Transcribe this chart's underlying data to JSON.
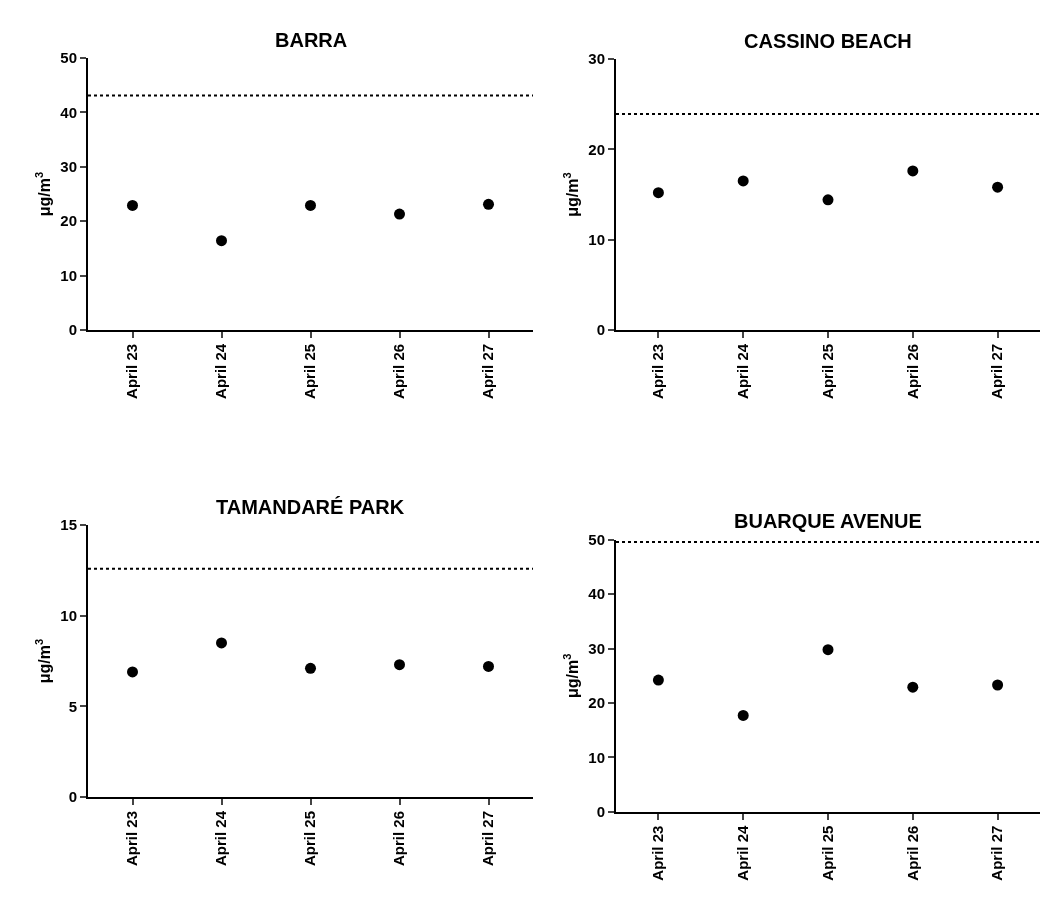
{
  "chart_data": [
    {
      "type": "scatter",
      "title": "BARRA",
      "ylabel": "μg/m$^{3}$",
      "categories": [
        "April 23",
        "April 24",
        "April 25",
        "April 26",
        "April 27"
      ],
      "series": [
        {
          "color": "#000000",
          "values": [
            22.9,
            16.4,
            22.9,
            21.3,
            23.1
          ]
        }
      ],
      "ylim": [
        0,
        50
      ],
      "yticks": [
        0,
        10,
        20,
        30,
        40,
        50
      ],
      "ref_lines": [
        {
          "axis": "y",
          "value": 43.1,
          "color": "#000000",
          "line_style": "dotted"
        }
      ],
      "marker": "circle",
      "grid": false
    },
    {
      "type": "scatter",
      "title": "CASSINO BEACH",
      "ylabel": "μg/m$^{3}$",
      "categories": [
        "April 23",
        "April 24",
        "April 25",
        "April 26",
        "April 27"
      ],
      "series": [
        {
          "color": "#000000",
          "values": [
            15.2,
            16.5,
            14.4,
            17.6,
            15.8
          ]
        }
      ],
      "ylim": [
        0,
        30
      ],
      "yticks": [
        0,
        10,
        20,
        30
      ],
      "ref_lines": [
        {
          "axis": "y",
          "value": 23.9,
          "color": "#000000",
          "line_style": "dotted"
        }
      ],
      "marker": "circle",
      "grid": false
    },
    {
      "type": "scatter",
      "title": "TAMANDARÉ PARK",
      "ylabel": "μg/m$^{3}$",
      "categories": [
        "April 23",
        "April 24",
        "April 25",
        "April 26",
        "April 27"
      ],
      "series": [
        {
          "color": "#000000",
          "values": [
            6.9,
            8.5,
            7.1,
            7.3,
            7.2
          ]
        }
      ],
      "ylim": [
        0,
        15
      ],
      "yticks": [
        0,
        5,
        10,
        15
      ],
      "ref_lines": [
        {
          "axis": "y",
          "value": 12.6,
          "color": "#000000",
          "line_style": "dotted"
        }
      ],
      "marker": "circle",
      "grid": false
    },
    {
      "type": "scatter",
      "title": "BUARQUE AVENUE",
      "ylabel": "μg/m$^{3}$",
      "categories": [
        "April 23",
        "April 24",
        "April 25",
        "April 26",
        "April 27"
      ],
      "series": [
        {
          "color": "#000000",
          "values": [
            24.2,
            17.7,
            29.8,
            22.9,
            23.3
          ]
        }
      ],
      "ylim": [
        0,
        50
      ],
      "yticks": [
        0,
        10,
        20,
        30,
        40,
        50
      ],
      "ref_lines": [
        {
          "axis": "y",
          "value": 49.6,
          "color": "#000000",
          "line_style": "dotted"
        }
      ],
      "marker": "circle",
      "grid": false
    }
  ]
}
